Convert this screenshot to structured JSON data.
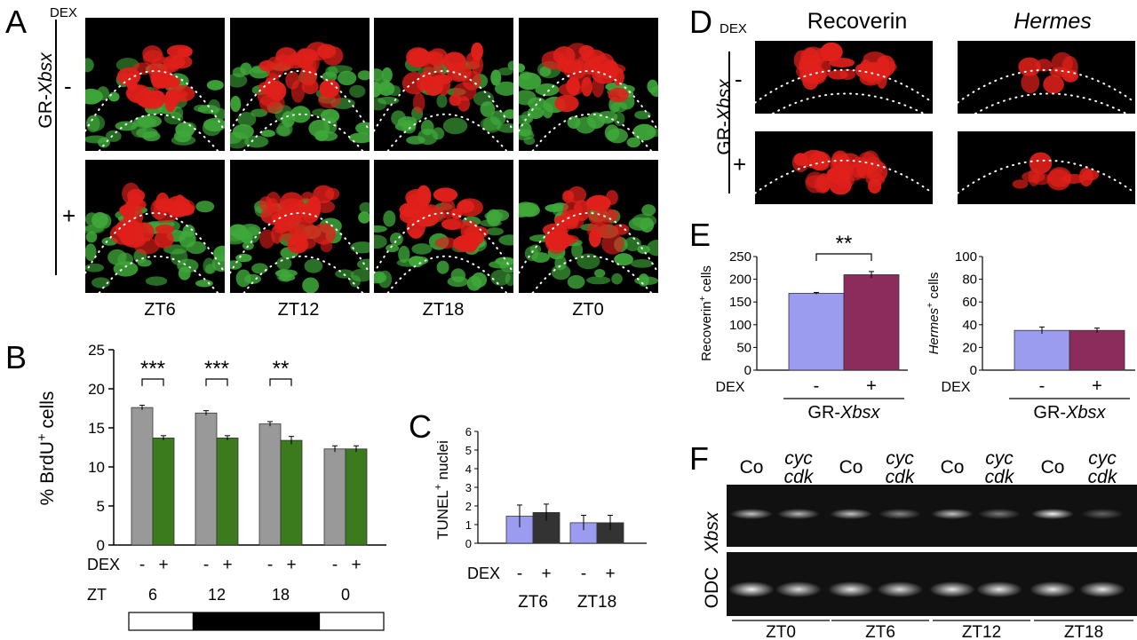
{
  "panelA": {
    "letter": "A",
    "dex_header": "DEX",
    "genotype_prefix": "GR-",
    "genotype_gene": "Xbsx",
    "row_minus": "-",
    "row_plus": "+",
    "timepoints": [
      "ZT6",
      "ZT12",
      "ZT18",
      "ZT0"
    ]
  },
  "panelB": {
    "letter": "B",
    "ylabel_pre": "% BrdU",
    "ylabel_sup": "+",
    "ylabel_post": " cells",
    "dex_label": "DEX",
    "zt_label": "ZT",
    "dex_signs": [
      "-",
      "+"
    ],
    "significance": [
      "***",
      "***",
      "**",
      ""
    ],
    "chart_data": {
      "type": "bar",
      "categories": [
        "6",
        "12",
        "18",
        "0"
      ],
      "series": [
        {
          "name": "-",
          "values": [
            17.6,
            16.9,
            15.5,
            12.3
          ],
          "errors": [
            0.3,
            0.3,
            0.3,
            0.4
          ],
          "color": "#999999"
        },
        {
          "name": "+",
          "values": [
            13.7,
            13.7,
            13.4,
            12.3
          ],
          "errors": [
            0.3,
            0.3,
            0.5,
            0.4
          ],
          "color": "#3c7a1e"
        }
      ],
      "yticks": [
        0,
        5,
        10,
        15,
        20,
        25
      ],
      "ylim": [
        0,
        25
      ],
      "light_dark_bar": [
        "light",
        "dark",
        "dark",
        "light"
      ]
    }
  },
  "panelC": {
    "letter": "C",
    "ylabel_pre": "TUNEL",
    "ylabel_sup": "+",
    "ylabel_post": " nuclei",
    "dex_label": "DEX",
    "dex_signs": [
      "-",
      "+"
    ],
    "chart_data": {
      "type": "bar",
      "categories": [
        "ZT6",
        "ZT18"
      ],
      "series": [
        {
          "name": "-",
          "values": [
            1.45,
            1.1
          ],
          "errors": [
            0.6,
            0.4
          ],
          "color": "#9b9bf0"
        },
        {
          "name": "+",
          "values": [
            1.65,
            1.1
          ],
          "errors": [
            0.45,
            0.4
          ],
          "color": "#333333"
        }
      ],
      "yticks": [
        0,
        1,
        2,
        3,
        4,
        5,
        6
      ],
      "ylim": [
        0,
        6
      ]
    }
  },
  "panelD": {
    "letter": "D",
    "dex_header": "DEX",
    "col1": "Recoverin",
    "col2": "Hermes",
    "genotype_prefix": "GR-",
    "genotype_gene": "Xbsx",
    "row_minus": "-",
    "row_plus": "+"
  },
  "panelE": {
    "letter": "E",
    "dex_label": "DEX",
    "genotype_prefix": "GR-",
    "genotype_gene": "Xbsx",
    "dex_signs": [
      "-",
      "+"
    ],
    "left": {
      "ylabel_pre": "Recoverin",
      "ylabel_sup": "+",
      "ylabel_post": " cells",
      "significance": "**",
      "chart_data": {
        "type": "bar",
        "categories": [
          "-",
          "+"
        ],
        "values": [
          169,
          210
        ],
        "errors": [
          2,
          7
        ],
        "colors": [
          "#9b9bf0",
          "#8c2c5c"
        ],
        "yticks": [
          0,
          50,
          100,
          150,
          200,
          250
        ],
        "ylim": [
          0,
          250
        ]
      }
    },
    "right": {
      "ylabel_pre": "Hermes",
      "ylabel_sup": "+",
      "ylabel_post": " cells",
      "chart_data": {
        "type": "bar",
        "categories": [
          "-",
          "+"
        ],
        "values": [
          35,
          35
        ],
        "errors": [
          3,
          2
        ],
        "colors": [
          "#9b9bf0",
          "#8c2c5c"
        ],
        "yticks": [
          0,
          20,
          40,
          60,
          80,
          100
        ],
        "ylim": [
          0,
          100
        ]
      }
    }
  },
  "panelF": {
    "letter": "F",
    "lane_labels": [
      [
        "Co"
      ],
      [
        "cyc",
        "cdk"
      ],
      [
        "Co"
      ],
      [
        "cyc",
        "cdk"
      ],
      [
        "Co"
      ],
      [
        "cyc",
        "cdk"
      ],
      [
        "Co"
      ],
      [
        "cyc",
        "cdk"
      ]
    ],
    "row1_label": "Xbsx",
    "row2_label": "ODC",
    "groups": [
      "ZT0",
      "ZT6",
      "ZT12",
      "ZT18"
    ],
    "xbsx_band_intensity": [
      0.75,
      0.7,
      0.75,
      0.5,
      0.75,
      0.45,
      0.95,
      0.35
    ],
    "odc_band_intensity": [
      0.95,
      0.85,
      0.9,
      0.85,
      0.9,
      0.9,
      0.9,
      0.9
    ]
  }
}
